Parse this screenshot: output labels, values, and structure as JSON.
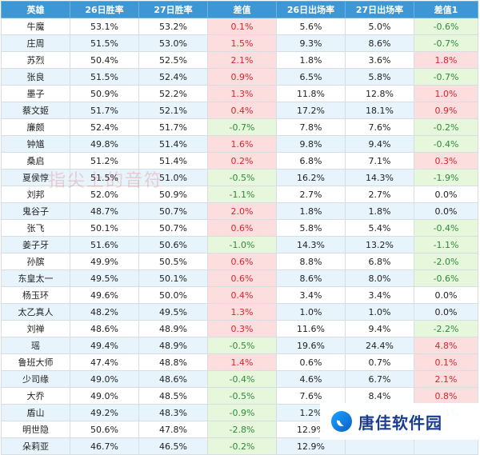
{
  "headers": [
    "英雄",
    "26日胜率",
    "27日胜率",
    "差值",
    "26日出场率",
    "27日出场率",
    "差值1"
  ],
  "rows": [
    [
      "牛魔",
      "53.1%",
      "53.2%",
      "0.1%",
      "5.6%",
      "5.0%",
      "-0.6%"
    ],
    [
      "庄周",
      "51.5%",
      "53.0%",
      "1.5%",
      "9.3%",
      "8.6%",
      "-0.7%"
    ],
    [
      "苏烈",
      "50.4%",
      "52.5%",
      "2.1%",
      "1.8%",
      "3.6%",
      "1.8%"
    ],
    [
      "张良",
      "51.5%",
      "52.4%",
      "0.9%",
      "6.5%",
      "5.8%",
      "-0.7%"
    ],
    [
      "墨子",
      "50.9%",
      "52.2%",
      "1.3%",
      "11.8%",
      "12.8%",
      "1.0%"
    ],
    [
      "蔡文姬",
      "51.7%",
      "52.1%",
      "0.4%",
      "17.2%",
      "18.1%",
      "0.9%"
    ],
    [
      "廉颇",
      "52.4%",
      "51.7%",
      "-0.7%",
      "7.8%",
      "7.6%",
      "-0.2%"
    ],
    [
      "钟馗",
      "49.8%",
      "51.4%",
      "1.6%",
      "9.8%",
      "9.4%",
      "-0.4%"
    ],
    [
      "桑启",
      "51.2%",
      "51.4%",
      "0.2%",
      "6.8%",
      "7.1%",
      "0.3%"
    ],
    [
      "夏侯惇",
      "51.5%",
      "51.0%",
      "-0.5%",
      "16.2%",
      "14.3%",
      "-1.9%"
    ],
    [
      "刘邦",
      "52.0%",
      "50.9%",
      "-1.1%",
      "2.7%",
      "2.7%",
      "0.0%"
    ],
    [
      "鬼谷子",
      "48.7%",
      "50.7%",
      "2.0%",
      "1.8%",
      "1.8%",
      "0.0%"
    ],
    [
      "张飞",
      "50.1%",
      "50.7%",
      "0.6%",
      "5.8%",
      "5.4%",
      "-0.4%"
    ],
    [
      "姜子牙",
      "51.6%",
      "50.6%",
      "-1.0%",
      "14.3%",
      "13.2%",
      "-1.1%"
    ],
    [
      "孙膑",
      "49.9%",
      "50.5%",
      "0.6%",
      "8.8%",
      "6.8%",
      "-2.0%"
    ],
    [
      "东皇太一",
      "49.5%",
      "50.1%",
      "0.6%",
      "8.6%",
      "8.0%",
      "-0.6%"
    ],
    [
      "杨玉环",
      "49.6%",
      "50.0%",
      "0.4%",
      "3.4%",
      "3.4%",
      "0.0%"
    ],
    [
      "太乙真人",
      "48.2%",
      "49.5%",
      "1.3%",
      "1.0%",
      "1.0%",
      "0.0%"
    ],
    [
      "刘禅",
      "48.6%",
      "48.9%",
      "0.3%",
      "11.6%",
      "9.4%",
      "-2.2%"
    ],
    [
      "瑶",
      "49.4%",
      "48.9%",
      "-0.5%",
      "19.6%",
      "24.4%",
      "4.8%"
    ],
    [
      "鲁班大师",
      "47.4%",
      "48.8%",
      "1.4%",
      "0.6%",
      "0.7%",
      "0.1%"
    ],
    [
      "少司缘",
      "49.0%",
      "48.6%",
      "-0.4%",
      "4.6%",
      "6.7%",
      "2.1%"
    ],
    [
      "大乔",
      "49.0%",
      "48.5%",
      "-0.5%",
      "7.6%",
      "8.4%",
      "0.8%"
    ],
    [
      "盾山",
      "49.2%",
      "48.3%",
      "-0.9%",
      "1.2%",
      "1.1%",
      "-0.1%"
    ],
    [
      "明世隐",
      "50.6%",
      "47.8%",
      "-2.8%",
      "12.9%",
      "",
      ""
    ],
    [
      "朵莉亚",
      "46.7%",
      "46.5%",
      "-0.2%",
      "12.9%",
      "",
      ""
    ]
  ],
  "watermark": "指尖上的音符",
  "logo": {
    "text": "唐佳软件园",
    "icon": "logo-swirl-icon"
  },
  "colors": {
    "header_bg": "#3d97d4",
    "alt_row_bg": "#e8f4fc",
    "positive_bg": "#fcdede",
    "positive_text": "#d8262c",
    "negative_bg": "#e6f7dc",
    "negative_text": "#2e8b3a"
  }
}
